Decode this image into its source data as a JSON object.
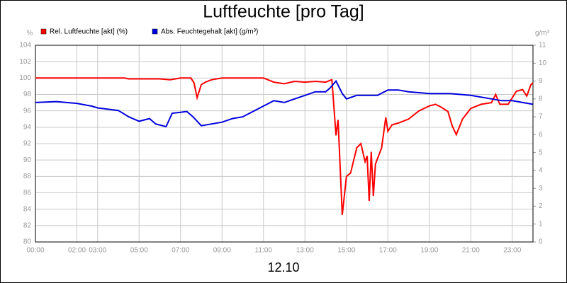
{
  "chart_data": {
    "type": "line",
    "title": "Luftfeuchte [pro Tag]",
    "xlabel": "12.10",
    "ylabel": "%",
    "y2label": "g/m³",
    "xlim": [
      0,
      24
    ],
    "xticks": [
      {
        "value": 0,
        "label": "00:00"
      },
      {
        "value": 2,
        "label": "02:00"
      },
      {
        "value": 3,
        "label": "03:00"
      },
      {
        "value": 5,
        "label": "05:00"
      },
      {
        "value": 7,
        "label": "07:00"
      },
      {
        "value": 9,
        "label": "09:00"
      },
      {
        "value": 11,
        "label": "11:00"
      },
      {
        "value": 13,
        "label": "13:00"
      },
      {
        "value": 15,
        "label": "15:00"
      },
      {
        "value": 17,
        "label": "17:00"
      },
      {
        "value": 19,
        "label": "19:00"
      },
      {
        "value": 21,
        "label": "21:00"
      },
      {
        "value": 23,
        "label": "23:00"
      }
    ],
    "ylim": [
      80,
      104
    ],
    "yticks": [
      80,
      82,
      84,
      86,
      88,
      90,
      92,
      94,
      96,
      98,
      100,
      102,
      104
    ],
    "y2lim": [
      0,
      11
    ],
    "y2ticks": [
      0,
      1,
      2,
      3,
      4,
      5,
      6,
      7,
      8,
      9,
      10,
      11
    ],
    "grid": true,
    "series": [
      {
        "name": "Rel. Luftfeuchte [akt] (%)",
        "color": "#ff0000",
        "x": [
          0,
          2,
          4.3,
          4.5,
          5,
          6,
          6.5,
          7,
          7.5,
          7.65,
          7.8,
          8.0,
          8.2,
          8.5,
          9,
          10,
          11,
          11.5,
          12,
          12.5,
          13,
          13.5,
          14,
          14.3,
          14.5,
          14.6,
          14.8,
          15.0,
          15.2,
          15.5,
          15.7,
          15.9,
          16.0,
          16.1,
          16.2,
          16.3,
          16.4,
          16.7,
          16.9,
          17.0,
          17.2,
          17.5,
          18,
          18.5,
          19,
          19.3,
          19.6,
          19.9,
          20.1,
          20.3,
          20.6,
          21,
          21.5,
          22,
          22.2,
          22.4,
          22.8,
          23,
          23.2,
          23.5,
          23.7,
          23.9,
          24
        ],
        "values": [
          100,
          100,
          100,
          99.9,
          99.9,
          99.9,
          99.8,
          100,
          100,
          99.4,
          97.6,
          99.2,
          99.5,
          99.8,
          100,
          100,
          100,
          99.5,
          99.3,
          99.6,
          99.5,
          99.6,
          99.5,
          99.8,
          93,
          94.9,
          83.3,
          88,
          88.4,
          91.5,
          92,
          89.8,
          90.5,
          85,
          91,
          85.6,
          89.5,
          91.5,
          95.2,
          93.5,
          94.3,
          94.5,
          95,
          96,
          96.6,
          96.8,
          96.4,
          95.9,
          94.2,
          93.1,
          95,
          96.3,
          96.8,
          97,
          98,
          96.8,
          96.8,
          97.6,
          98.4,
          98.6,
          97.8,
          99.2,
          99.4
        ]
      },
      {
        "name": "Abs. Feuchtegehalt [akt] (g/m³)",
        "color": "#0000dd",
        "axis": "y2",
        "x": [
          0,
          1,
          2,
          2.7,
          3,
          4,
          4.5,
          5,
          5.5,
          5.8,
          6.3,
          6.6,
          7,
          7.3,
          7.6,
          8,
          8.5,
          9,
          9.5,
          10,
          10.5,
          11,
          11.5,
          12,
          12.5,
          13,
          13.5,
          14,
          14.2,
          14.5,
          14.8,
          15,
          15.5,
          16,
          16.5,
          17,
          17.5,
          18,
          19,
          20,
          21,
          22,
          22.5,
          23,
          23.5,
          24
        ],
        "values": [
          7.8,
          7.85,
          7.75,
          7.6,
          7.5,
          7.35,
          7.0,
          6.75,
          6.9,
          6.6,
          6.45,
          7.2,
          7.25,
          7.3,
          7.0,
          6.5,
          6.6,
          6.7,
          6.9,
          7.0,
          7.3,
          7.6,
          7.9,
          7.8,
          8.0,
          8.2,
          8.4,
          8.4,
          8.6,
          9.0,
          8.3,
          8.0,
          8.2,
          8.2,
          8.2,
          8.5,
          8.5,
          8.4,
          8.3,
          8.3,
          8.2,
          8.0,
          7.9,
          7.9,
          7.8,
          7.7
        ]
      }
    ]
  }
}
